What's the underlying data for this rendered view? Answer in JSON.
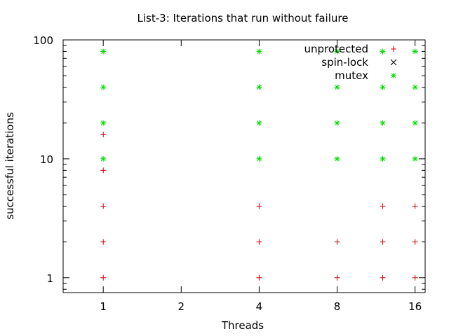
{
  "chart_data": {
    "type": "scatter",
    "title": "List-3: Iterations that run without failure",
    "xlabel": "Threads",
    "ylabel": "successful iterations",
    "x_scale": "log2",
    "y_scale": "log10",
    "xlim": [
      0.7,
      17.5
    ],
    "ylim": [
      0.75,
      100
    ],
    "x_ticks": [
      {
        "value": 1,
        "label": "1"
      },
      {
        "value": 2,
        "label": "2"
      },
      {
        "value": 4,
        "label": "4"
      },
      {
        "value": 8,
        "label": "8"
      },
      {
        "value": 16,
        "label": "16"
      }
    ],
    "y_ticks": [
      {
        "value": 1,
        "label": "1"
      },
      {
        "value": 10,
        "label": "10"
      },
      {
        "value": 100,
        "label": "100"
      }
    ],
    "legend": {
      "position": "top-right"
    },
    "grid": false,
    "series": [
      {
        "name": "unprotected",
        "marker": "plus",
        "color": "#cc0000",
        "points": [
          {
            "x": 1,
            "y": 1
          },
          {
            "x": 1,
            "y": 2
          },
          {
            "x": 1,
            "y": 4
          },
          {
            "x": 1,
            "y": 8
          },
          {
            "x": 1,
            "y": 16
          },
          {
            "x": 4,
            "y": 1
          },
          {
            "x": 4,
            "y": 2
          },
          {
            "x": 4,
            "y": 4
          },
          {
            "x": 8,
            "y": 1
          },
          {
            "x": 8,
            "y": 2
          },
          {
            "x": 12,
            "y": 1
          },
          {
            "x": 12,
            "y": 2
          },
          {
            "x": 12,
            "y": 4
          },
          {
            "x": 16,
            "y": 1
          },
          {
            "x": 16,
            "y": 2
          },
          {
            "x": 16,
            "y": 4
          }
        ]
      },
      {
        "name": "spin-lock",
        "marker": "cross",
        "color": "#000000",
        "points": []
      },
      {
        "name": "mutex",
        "marker": "star",
        "color": "#00dd00",
        "points": [
          {
            "x": 1,
            "y": 10
          },
          {
            "x": 1,
            "y": 20
          },
          {
            "x": 1,
            "y": 40
          },
          {
            "x": 1,
            "y": 80
          },
          {
            "x": 4,
            "y": 10
          },
          {
            "x": 4,
            "y": 20
          },
          {
            "x": 4,
            "y": 40
          },
          {
            "x": 4,
            "y": 80
          },
          {
            "x": 8,
            "y": 10
          },
          {
            "x": 8,
            "y": 20
          },
          {
            "x": 8,
            "y": 40
          },
          {
            "x": 8,
            "y": 80
          },
          {
            "x": 12,
            "y": 10
          },
          {
            "x": 12,
            "y": 20
          },
          {
            "x": 12,
            "y": 40
          },
          {
            "x": 12,
            "y": 80
          },
          {
            "x": 16,
            "y": 10
          },
          {
            "x": 16,
            "y": 20
          },
          {
            "x": 16,
            "y": 40
          },
          {
            "x": 16,
            "y": 80
          }
        ]
      }
    ]
  }
}
